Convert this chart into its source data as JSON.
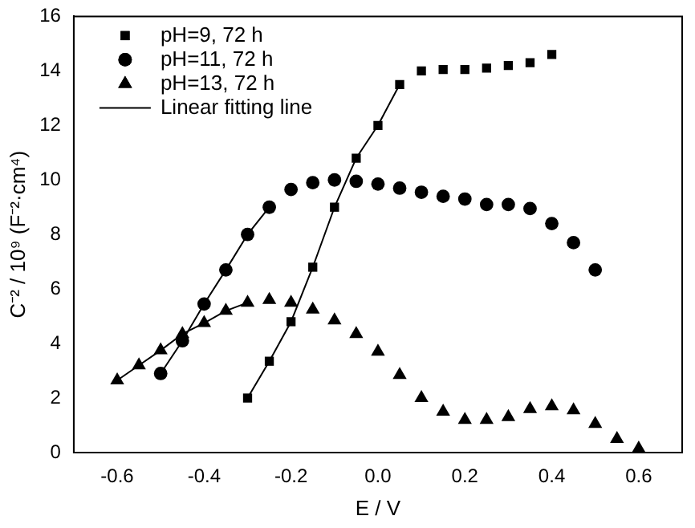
{
  "chart_data": {
    "type": "scatter",
    "xlabel": "E / V",
    "ylabel": "C⁻² / 10⁹ (F⁻²·cm⁴)",
    "xlim": [
      -0.7,
      0.7
    ],
    "ylim": [
      0,
      16
    ],
    "xticks": [
      -0.6,
      -0.4,
      -0.2,
      {
        "value": 0,
        "label": "0.0"
      },
      0.2,
      0.4,
      0.6
    ],
    "yticks": [
      0,
      2,
      4,
      6,
      8,
      10,
      12,
      14,
      16
    ],
    "grid": false,
    "legend": "top left",
    "series": [
      {
        "name": "pH=9, 72 h",
        "marker": "square",
        "color": "#000000",
        "x": [
          -0.3,
          -0.25,
          -0.2,
          -0.15,
          -0.1,
          -0.05,
          0,
          0.05,
          0.1,
          0.15,
          0.2,
          0.25,
          0.3,
          0.35,
          0.4
        ],
        "values": [
          2.0,
          3.35,
          4.8,
          6.8,
          9.0,
          10.8,
          12.0,
          13.5,
          14.0,
          14.05,
          14.05,
          14.1,
          14.2,
          14.3,
          14.6
        ]
      },
      {
        "name": "pH=11, 72 h",
        "marker": "circle",
        "color": "#000000",
        "x": [
          -0.5,
          -0.45,
          -0.4,
          -0.35,
          -0.3,
          -0.25,
          -0.2,
          -0.15,
          -0.1,
          -0.05,
          0,
          0.05,
          0.1,
          0.15,
          0.2,
          0.25,
          0.3,
          0.35,
          0.4,
          0.45,
          0.5
        ],
        "values": [
          2.9,
          4.1,
          5.45,
          6.7,
          8.0,
          9.0,
          9.65,
          9.9,
          10.0,
          9.95,
          9.85,
          9.7,
          9.55,
          9.4,
          9.3,
          9.1,
          9.1,
          8.95,
          8.4,
          7.7,
          6.7
        ]
      },
      {
        "name": "pH=13, 72 h",
        "marker": "triangle",
        "color": "#000000",
        "x": [
          -0.6,
          -0.55,
          -0.5,
          -0.45,
          -0.4,
          -0.35,
          -0.3,
          -0.25,
          -0.2,
          -0.15,
          -0.1,
          -0.05,
          0,
          0.05,
          0.1,
          0.15,
          0.2,
          0.25,
          0.3,
          0.35,
          0.4,
          0.45,
          0.5,
          0.55,
          0.6
        ],
        "values": [
          2.65,
          3.2,
          3.75,
          4.35,
          4.75,
          5.2,
          5.5,
          5.6,
          5.5,
          5.25,
          4.85,
          4.35,
          3.7,
          2.85,
          2.0,
          1.5,
          1.2,
          1.2,
          1.3,
          1.6,
          1.7,
          1.55,
          1.05,
          0.5,
          0.15
        ]
      },
      {
        "name": "Linear fitting line",
        "type": "line",
        "marker": "none",
        "color": "#000000",
        "x": [
          -0.3,
          -0.25,
          -0.2,
          -0.15,
          -0.1,
          -0.05,
          0,
          0.05
        ],
        "values": [
          2.0,
          3.35,
          4.8,
          6.8,
          9.0,
          10.8,
          12.0,
          13.5
        ]
      },
      {
        "type": "line",
        "marker": "none",
        "color": "#000000",
        "x": [
          -0.5,
          -0.45,
          -0.4,
          -0.35,
          -0.3,
          -0.25
        ],
        "values": [
          2.9,
          4.1,
          5.45,
          6.7,
          8.0,
          9.0
        ]
      },
      {
        "type": "line",
        "marker": "none",
        "color": "#000000",
        "x": [
          -0.6,
          -0.55,
          -0.5,
          -0.45,
          -0.4,
          -0.35,
          -0.3
        ],
        "values": [
          2.65,
          3.2,
          3.75,
          4.35,
          4.75,
          5.2,
          5.5
        ]
      }
    ]
  }
}
